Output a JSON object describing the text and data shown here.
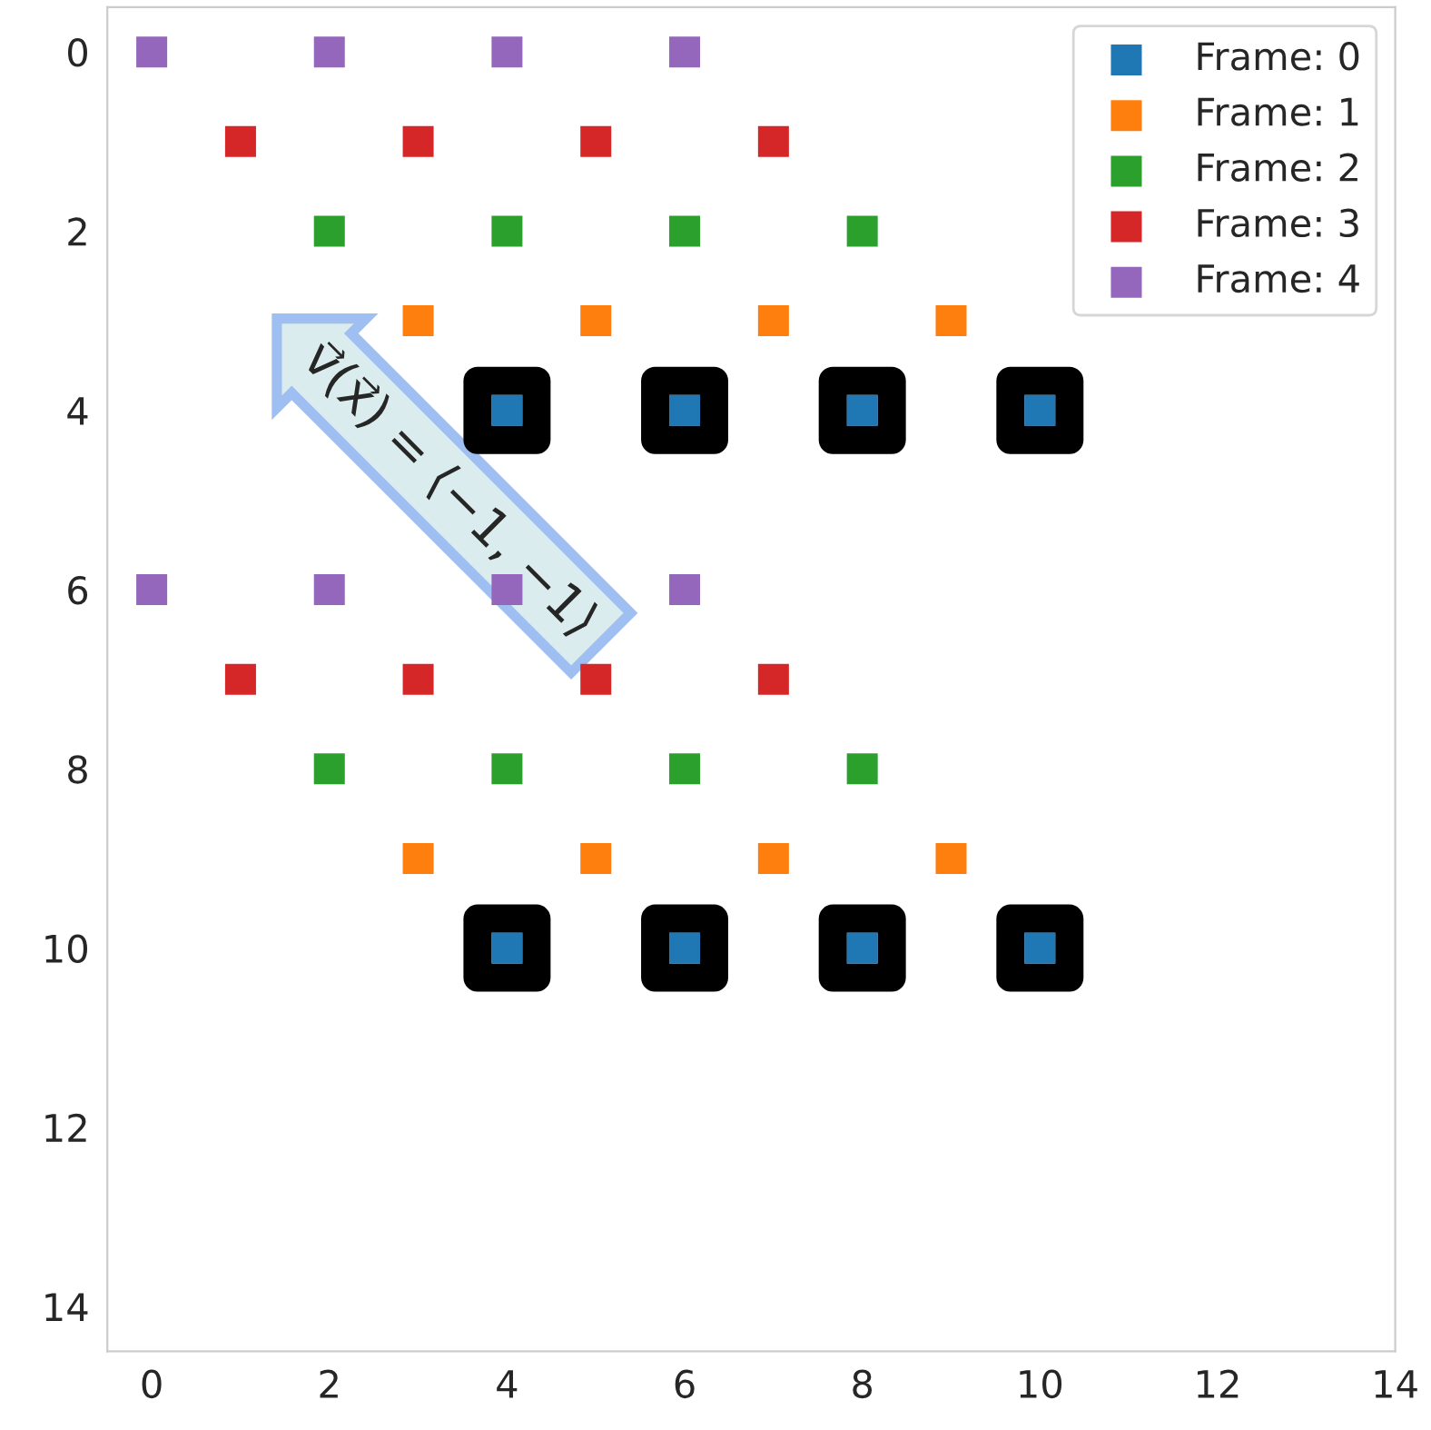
{
  "chart_data": {
    "type": "scatter",
    "marker": "square",
    "legend": "top right",
    "grid": false,
    "xlim": [
      -0.5,
      14
    ],
    "ylim": [
      14.5,
      -0.5
    ],
    "xticks": [
      0,
      2,
      4,
      6,
      8,
      10,
      12,
      14
    ],
    "yticks": [
      0,
      2,
      4,
      6,
      8,
      10,
      12,
      14
    ],
    "annotations": [
      "v⃗(x⃗) = ⟨−1, −1⟩"
    ],
    "series": [
      {
        "color": "#000000",
        "x": [
          4,
          6,
          8,
          10,
          4,
          6,
          8,
          10
        ],
        "values": [
          4,
          4,
          4,
          4,
          10,
          10,
          10,
          10
        ]
      },
      {
        "name": "Frame: 0",
        "color": "#1f77b4",
        "x": [
          4,
          6,
          8,
          10,
          4,
          6,
          8,
          10
        ],
        "values": [
          4,
          4,
          4,
          4,
          10,
          10,
          10,
          10
        ]
      },
      {
        "name": "Frame: 1",
        "color": "#ff7f0e",
        "x": [
          3,
          5,
          7,
          9,
          3,
          5,
          7,
          9
        ],
        "values": [
          3,
          3,
          3,
          3,
          9,
          9,
          9,
          9
        ]
      },
      {
        "name": "Frame: 2",
        "color": "#2ca02c",
        "x": [
          2,
          4,
          6,
          8,
          2,
          4,
          6,
          8
        ],
        "values": [
          2,
          2,
          2,
          2,
          8,
          8,
          8,
          8
        ]
      },
      {
        "name": "Frame: 3",
        "color": "#d62728",
        "x": [
          1,
          3,
          5,
          7,
          1,
          3,
          5,
          7
        ],
        "values": [
          1,
          1,
          1,
          1,
          7,
          7,
          7,
          7
        ]
      },
      {
        "name": "Frame: 4",
        "color": "#9467bd",
        "x": [
          0,
          2,
          4,
          6,
          0,
          2,
          4,
          6
        ],
        "values": [
          0,
          0,
          0,
          0,
          6,
          6,
          6,
          6
        ]
      }
    ]
  }
}
